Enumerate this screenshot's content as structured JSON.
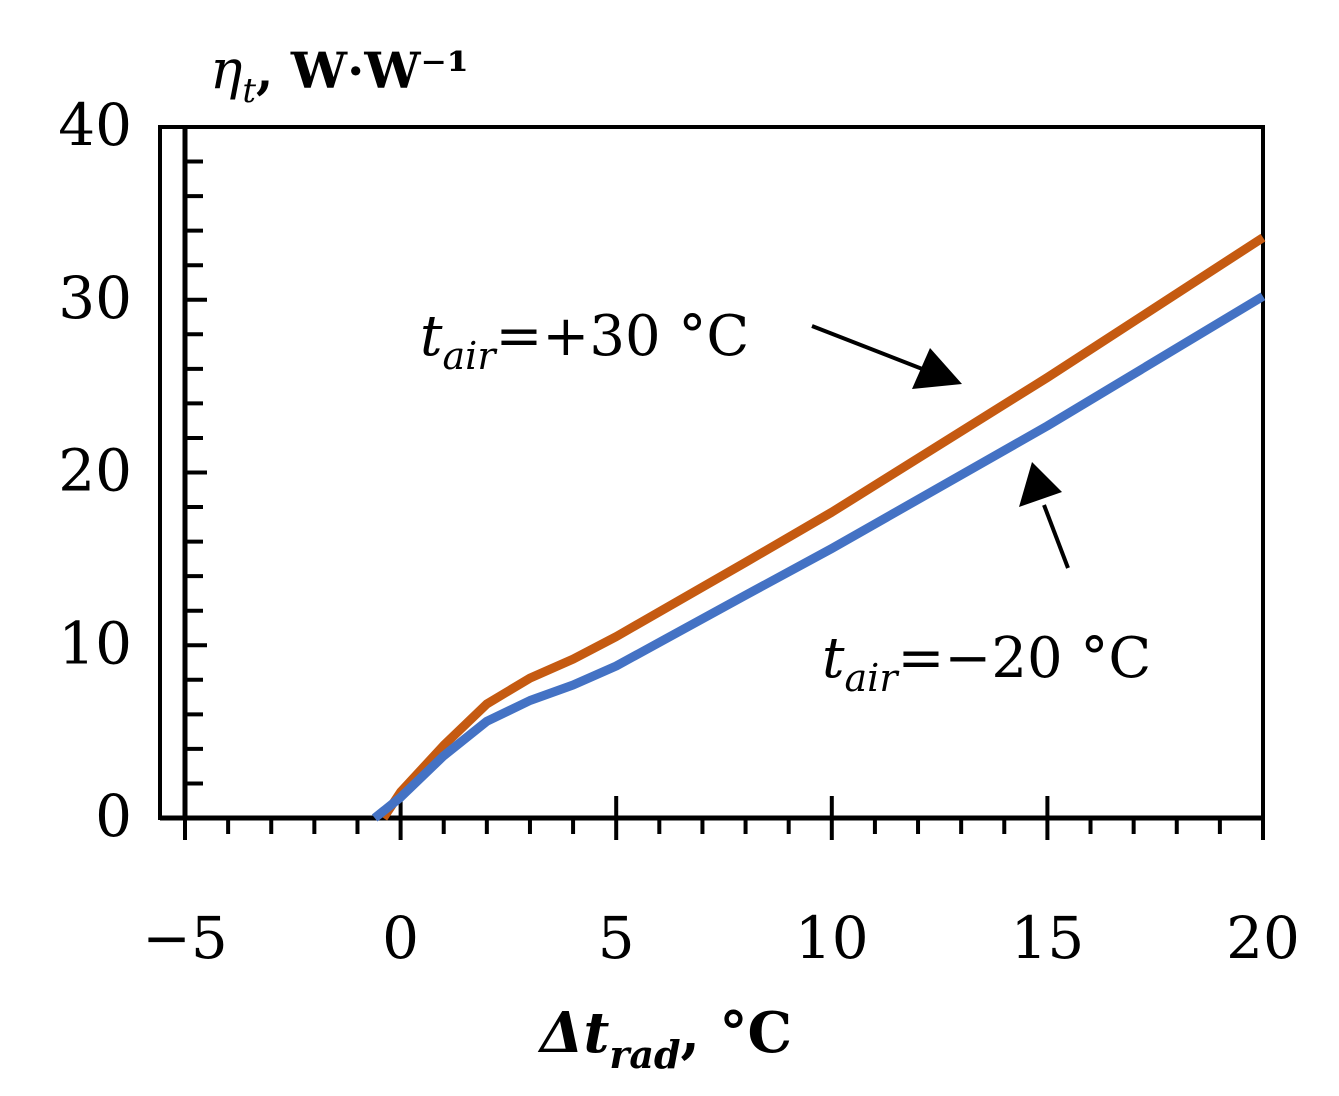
{
  "chart_data": {
    "type": "line",
    "ylabel": {
      "symbol": "η",
      "sub": "t",
      "unit": ", W·W⁻¹"
    },
    "xlabel": {
      "symbol": "Δt",
      "sub": "rad",
      "unit": ", °C"
    },
    "xlim": [
      -5,
      20
    ],
    "ylim": [
      0,
      40
    ],
    "x_ticks": [
      "−5",
      "0",
      "5",
      "10",
      "15",
      "20"
    ],
    "y_ticks": [
      "0",
      "10",
      "20",
      "30",
      "40"
    ],
    "x_tick_values": [
      -5,
      0,
      5,
      10,
      15,
      20
    ],
    "y_tick_values": [
      0,
      10,
      20,
      30,
      40
    ],
    "grid": false,
    "series": [
      {
        "label_main": "t",
        "label_sub": "air",
        "label_rest": "=+30 °C",
        "color": "#C55A11",
        "points": [
          [
            -0.4,
            0
          ],
          [
            0,
            1.5
          ],
          [
            1,
            4.2
          ],
          [
            2,
            6.6
          ],
          [
            3,
            8.1
          ],
          [
            4,
            9.2
          ],
          [
            5,
            10.5
          ],
          [
            8,
            14.8
          ],
          [
            10,
            17.7
          ],
          [
            15,
            25.5
          ],
          [
            20,
            33.6
          ]
        ]
      },
      {
        "label_main": "t",
        "label_sub": "air",
        "label_rest": "=−20 °C",
        "color": "#4472C4",
        "points": [
          [
            -0.6,
            0
          ],
          [
            0,
            1.2
          ],
          [
            1,
            3.6
          ],
          [
            2,
            5.6
          ],
          [
            3,
            6.8
          ],
          [
            4,
            7.7
          ],
          [
            5,
            8.8
          ],
          [
            8,
            12.9
          ],
          [
            10,
            15.6
          ],
          [
            15,
            22.7
          ],
          [
            20,
            30.2
          ]
        ]
      }
    ]
  }
}
